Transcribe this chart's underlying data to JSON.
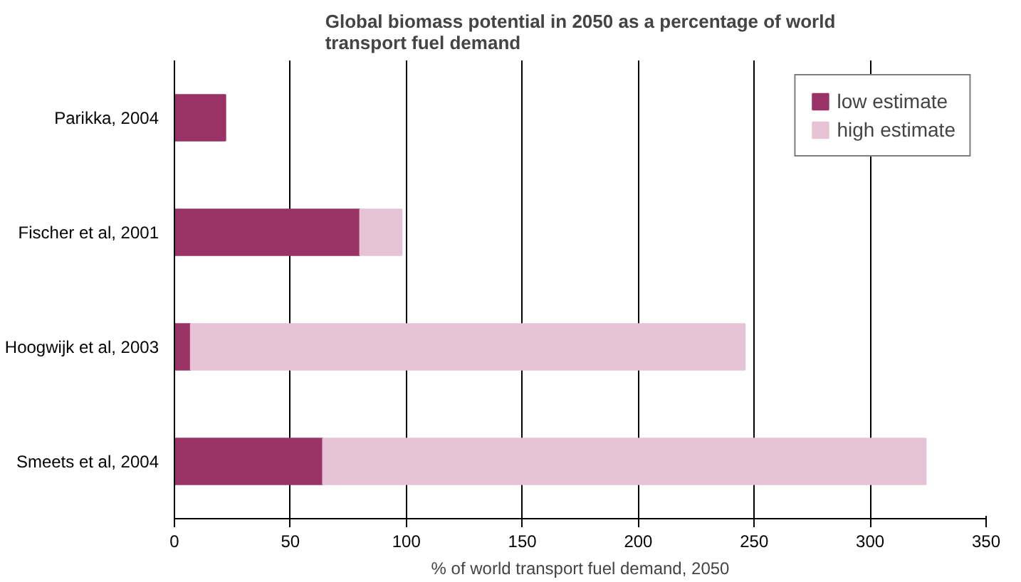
{
  "chart_data": {
    "type": "bar",
    "orientation": "horizontal",
    "stacked": true,
    "title": "Global biomass potential in 2050 as a percentage of world transport fuel demand",
    "xlabel": "% of world transport fuel demand, 2050",
    "categories": [
      "Parikka, 2004",
      "Fischer et al, 2001",
      "Hoogwijk et al, 2003",
      "Smeets et al, 2004"
    ],
    "series": [
      {
        "name": "low estimate",
        "color": "#993366",
        "values": [
          22,
          80,
          7,
          64
        ]
      },
      {
        "name": "high estimate",
        "color": "#e6c3d4",
        "values": [
          null,
          18,
          239,
          260
        ]
      }
    ],
    "xlim": [
      0,
      350
    ],
    "xticks": [
      0,
      50,
      100,
      150,
      200,
      250,
      300,
      350
    ],
    "grid": "x",
    "legend": "top right"
  }
}
